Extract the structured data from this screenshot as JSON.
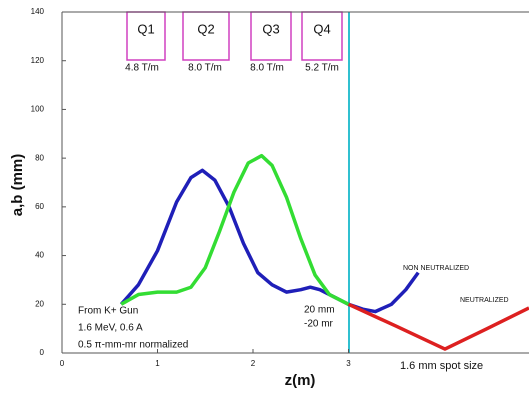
{
  "chart_data": {
    "type": "line",
    "xlabel": "z(m)",
    "ylabel": "a,b (mm)",
    "xlim": [
      0,
      4.89
    ],
    "ylim": [
      0,
      140
    ],
    "xticks": [
      0,
      1,
      2,
      3
    ],
    "yticks": [
      0,
      20,
      40,
      60,
      80,
      100,
      120,
      140
    ],
    "series": [
      {
        "color": "#1f1fb8",
        "x": [
          0.62,
          0.8,
          1.0,
          1.2,
          1.35,
          1.47,
          1.6,
          1.75,
          1.9,
          2.05,
          2.2,
          2.35,
          2.5,
          2.6,
          2.7,
          2.8,
          2.9,
          3.0,
          3.15,
          3.28,
          3.45,
          3.6,
          3.73
        ],
        "values": [
          20,
          28,
          42,
          62,
          72,
          75,
          71,
          60,
          45,
          33,
          28,
          25,
          26,
          27,
          26,
          24,
          22,
          20,
          18,
          17,
          20,
          26,
          33
        ]
      },
      {
        "color": "#33dd33",
        "x": [
          0.62,
          0.8,
          1.0,
          1.2,
          1.35,
          1.5,
          1.65,
          1.8,
          1.95,
          2.09,
          2.2,
          2.35,
          2.5,
          2.65,
          2.8,
          2.9,
          3.0
        ],
        "values": [
          20,
          24,
          25,
          25,
          27,
          35,
          50,
          66,
          78,
          81,
          77,
          64,
          47,
          32,
          24,
          22,
          20
        ]
      },
      {
        "color": "#dd2020",
        "x": [
          3.0,
          3.5,
          4.01,
          4.45,
          4.89
        ],
        "values": [
          20,
          11,
          1.6,
          10,
          18.5
        ]
      }
    ],
    "quads": [
      {
        "name": "Q1",
        "gradient": "4.8 T/m"
      },
      {
        "name": "Q2",
        "gradient": "8.0 T/m"
      },
      {
        "name": "Q3",
        "gradient": "8.0 T/m"
      },
      {
        "name": "Q4",
        "gradient": "5.2 T/m"
      }
    ],
    "annotations": {
      "non_neutralized": "NON NEUTRALIZED",
      "neutralized": "NEUTRALIZED",
      "mm": "20 mm",
      "mr": "-20 mr",
      "spot": "1.6 mm spot size",
      "source_1": "From K+ Gun",
      "source_2": "1.6 MeV, 0.6 A",
      "source_3": "0.5 π-mm-mr normalized"
    }
  }
}
